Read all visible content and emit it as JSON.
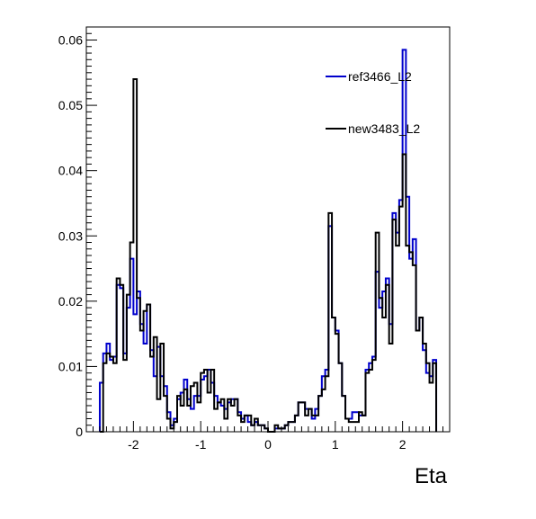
{
  "chart_data": {
    "type": "histogram",
    "xlabel": "Eta",
    "ylabel": "",
    "xlim": [
      -2.7,
      2.7
    ],
    "ylim": [
      0,
      0.062
    ],
    "grid": false,
    "legend_placement": "top-right",
    "x_ticks": [
      {
        "value": -2,
        "label": "-2"
      },
      {
        "value": -1,
        "label": "-1"
      },
      {
        "value": 0,
        "label": "0"
      },
      {
        "value": 1,
        "label": "1"
      },
      {
        "value": 2,
        "label": "2"
      }
    ],
    "y_ticks": [
      {
        "value": 0,
        "label": "0"
      },
      {
        "value": 0.01,
        "label": "0.01"
      },
      {
        "value": 0.02,
        "label": "0.02"
      },
      {
        "value": 0.03,
        "label": "0.03"
      },
      {
        "value": 0.04,
        "label": "0.04"
      },
      {
        "value": 0.05,
        "label": "0.05"
      },
      {
        "value": 0.06,
        "label": "0.06"
      }
    ],
    "bin_edges": [
      -2.5,
      -2.45,
      -2.4,
      -2.35,
      -2.3,
      -2.25,
      -2.2,
      -2.15,
      -2.1,
      -2.05,
      -2.0,
      -1.95,
      -1.9,
      -1.85,
      -1.8,
      -1.75,
      -1.7,
      -1.65,
      -1.6,
      -1.55,
      -1.5,
      -1.45,
      -1.4,
      -1.35,
      -1.3,
      -1.25,
      -1.2,
      -1.15,
      -1.1,
      -1.05,
      -1.0,
      -0.95,
      -0.9,
      -0.85,
      -0.8,
      -0.75,
      -0.7,
      -0.65,
      -0.6,
      -0.55,
      -0.5,
      -0.45,
      -0.4,
      -0.35,
      -0.3,
      -0.25,
      -0.2,
      -0.15,
      -0.1,
      -0.05,
      0.0,
      0.05,
      0.1,
      0.15,
      0.2,
      0.25,
      0.3,
      0.35,
      0.4,
      0.45,
      0.5,
      0.55,
      0.6,
      0.65,
      0.7,
      0.75,
      0.8,
      0.85,
      0.9,
      0.95,
      1.0,
      1.05,
      1.1,
      1.15,
      1.2,
      1.25,
      1.3,
      1.35,
      1.4,
      1.45,
      1.5,
      1.55,
      1.6,
      1.65,
      1.7,
      1.75,
      1.8,
      1.85,
      1.9,
      1.95,
      2.0,
      2.05,
      2.1,
      2.15,
      2.2,
      2.25,
      2.3,
      2.35,
      2.4,
      2.45,
      2.5
    ],
    "series": [
      {
        "name": "ref3466_L2",
        "color": "#0000cc",
        "values": [
          0.0075,
          0.012,
          0.0135,
          0.011,
          0.0115,
          0.0225,
          0.022,
          0.012,
          0.019,
          0.0265,
          0.018,
          0.0215,
          0.0165,
          0.0135,
          0.0195,
          0.0125,
          0.0085,
          0.013,
          0.0085,
          0.007,
          0.003,
          0.001,
          0.002,
          0.005,
          0.006,
          0.008,
          0.005,
          0.0035,
          0.0055,
          0.0055,
          0.008,
          0.0085,
          0.0095,
          0.0075,
          0.0055,
          0.0045,
          0.004,
          0.0035,
          0.0045,
          0.005,
          0.005,
          0.003,
          0.002,
          0.0025,
          0.0015,
          0.001,
          0.0015,
          0.001,
          0.001,
          0.0005,
          0.0,
          0.0,
          0.0005,
          0.0005,
          0.0005,
          0.001,
          0.0015,
          0.0015,
          0.0025,
          0.0045,
          0.0045,
          0.0035,
          0.0035,
          0.002,
          0.0035,
          0.0055,
          0.0085,
          0.0095,
          0.0315,
          0.0175,
          0.0155,
          0.0105,
          0.0055,
          0.002,
          0.002,
          0.003,
          0.003,
          0.0025,
          0.0025,
          0.0095,
          0.0105,
          0.0115,
          0.0245,
          0.019,
          0.0215,
          0.0235,
          0.0165,
          0.0335,
          0.0305,
          0.0355,
          0.0585,
          0.036,
          0.0265,
          0.0295,
          0.0155,
          0.0175,
          0.0125,
          0.009,
          0.0085,
          0.011
        ]
      },
      {
        "name": "new3483_L2",
        "color": "#000000",
        "values": [
          0.0,
          0.0105,
          0.012,
          0.0115,
          0.0105,
          0.0235,
          0.0225,
          0.011,
          0.021,
          0.029,
          0.054,
          0.0205,
          0.0155,
          0.0185,
          0.0195,
          0.0115,
          0.0145,
          0.005,
          0.0135,
          0.0055,
          0.002,
          0.0005,
          0.0015,
          0.0055,
          0.004,
          0.0065,
          0.004,
          0.007,
          0.0075,
          0.0045,
          0.009,
          0.0095,
          0.006,
          0.0095,
          0.0035,
          0.0045,
          0.005,
          0.002,
          0.005,
          0.004,
          0.005,
          0.0025,
          0.0015,
          0.0025,
          0.0025,
          0.001,
          0.002,
          0.001,
          0.001,
          0.0005,
          0.0,
          0.0,
          0.001,
          0.0005,
          0.0005,
          0.001,
          0.0015,
          0.0015,
          0.0025,
          0.0045,
          0.0045,
          0.0025,
          0.0035,
          0.0025,
          0.0025,
          0.0055,
          0.0065,
          0.0085,
          0.0335,
          0.0175,
          0.015,
          0.0105,
          0.0055,
          0.002,
          0.0015,
          0.0015,
          0.0015,
          0.003,
          0.0025,
          0.009,
          0.0095,
          0.011,
          0.0305,
          0.0205,
          0.0175,
          0.0225,
          0.0135,
          0.0325,
          0.0285,
          0.0345,
          0.0425,
          0.0285,
          0.0275,
          0.0255,
          0.0155,
          0.0175,
          0.0135,
          0.0105,
          0.0075,
          0.0105
        ]
      }
    ]
  }
}
